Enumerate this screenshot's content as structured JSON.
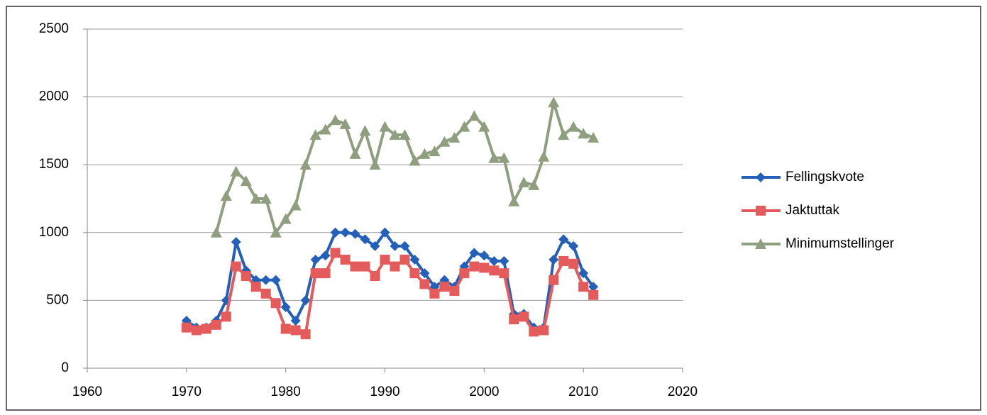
{
  "chart_data": {
    "type": "line",
    "x": [
      1970,
      1971,
      1972,
      1973,
      1974,
      1975,
      1976,
      1977,
      1978,
      1979,
      1980,
      1981,
      1982,
      1983,
      1984,
      1985,
      1986,
      1987,
      1988,
      1989,
      1990,
      1991,
      1992,
      1993,
      1994,
      1995,
      1996,
      1997,
      1998,
      1999,
      2000,
      2001,
      2002,
      2003,
      2004,
      2005,
      2006,
      2007,
      2008,
      2009,
      2010,
      2011
    ],
    "series": [
      {
        "name": "Fellingskvote",
        "color": "#2460b8",
        "marker": "diamond",
        "values": [
          350,
          300,
          300,
          350,
          500,
          930,
          720,
          650,
          650,
          650,
          450,
          350,
          500,
          800,
          830,
          1000,
          1000,
          990,
          950,
          900,
          1000,
          900,
          900,
          800,
          700,
          600,
          650,
          600,
          750,
          850,
          830,
          790,
          790,
          400,
          400,
          300,
          300,
          800,
          950,
          900,
          700,
          600
        ]
      },
      {
        "name": "Jaktuttak",
        "color": "#e35b5b",
        "marker": "square",
        "values": [
          300,
          280,
          290,
          320,
          380,
          750,
          680,
          600,
          550,
          480,
          290,
          280,
          250,
          700,
          700,
          850,
          800,
          750,
          750,
          680,
          800,
          750,
          800,
          700,
          620,
          550,
          600,
          570,
          700,
          750,
          740,
          720,
          700,
          360,
          380,
          270,
          280,
          650,
          790,
          770,
          600,
          540
        ]
      },
      {
        "name": "Minimumstellinger",
        "color": "#8f9e7e",
        "marker": "triangle",
        "values": [
          null,
          null,
          null,
          1000,
          1270,
          1450,
          1380,
          1250,
          1250,
          1000,
          1100,
          1200,
          1500,
          1720,
          1760,
          1830,
          1800,
          1580,
          1750,
          1500,
          1780,
          1720,
          1720,
          1530,
          1580,
          1600,
          1670,
          1700,
          1780,
          1860,
          1780,
          1550,
          1550,
          1230,
          1370,
          1350,
          1560,
          1960,
          1720,
          1780,
          1730,
          1700
        ]
      }
    ],
    "xlim": [
      1960,
      2020
    ],
    "xticks": [
      1960,
      1970,
      1980,
      1990,
      2000,
      2010,
      2020
    ],
    "ylim": [
      0,
      2500
    ],
    "yticks": [
      0,
      500,
      1000,
      1500,
      2000,
      2500
    ],
    "grid": true,
    "legend": "right"
  }
}
